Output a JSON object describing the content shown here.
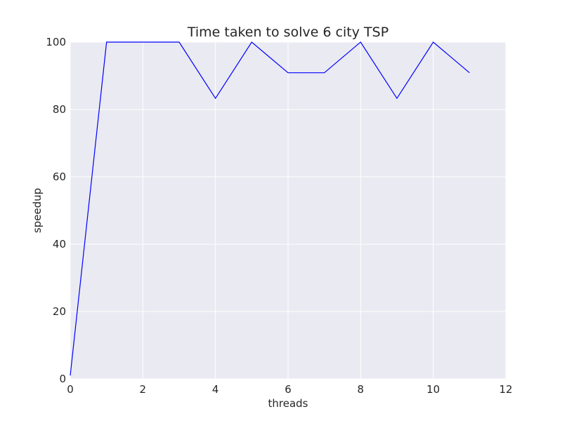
{
  "chart_data": {
    "type": "line",
    "title": "Time taken to solve 6 city TSP",
    "xlabel": "threads",
    "ylabel": "speedup",
    "xlim": [
      0,
      12
    ],
    "ylim": [
      0,
      100
    ],
    "xticks": [
      0,
      2,
      4,
      6,
      8,
      10,
      12
    ],
    "yticks": [
      0,
      20,
      40,
      60,
      80,
      100
    ],
    "grid": true,
    "legend": "none",
    "series": [
      {
        "color": "#0000ff",
        "x": [
          0,
          1,
          2,
          3,
          4,
          5,
          6,
          7,
          8,
          9,
          10,
          11
        ],
        "y": [
          1,
          100,
          100,
          100,
          83.3,
          100,
          90.9,
          90.9,
          100,
          83.3,
          100,
          90.9
        ]
      }
    ]
  }
}
